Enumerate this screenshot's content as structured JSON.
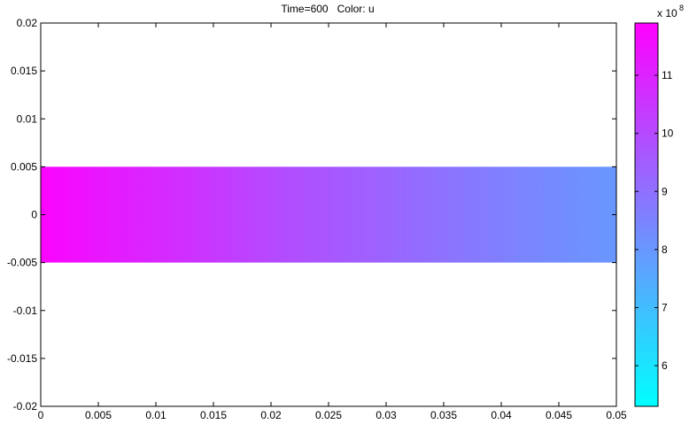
{
  "chart_data": {
    "type": "heatmap",
    "title": "Time=600   Color: u",
    "xlabel": "",
    "ylabel": "",
    "xlim": [
      0,
      0.05
    ],
    "ylim": [
      -0.02,
      0.02
    ],
    "x_ticks": [
      0,
      0.005,
      0.01,
      0.015,
      0.02,
      0.025,
      0.03,
      0.035,
      0.04,
      0.045,
      0.05
    ],
    "x_tick_labels": [
      "0",
      "0.005",
      "0.01",
      "0.015",
      "0.02",
      "0.025",
      "0.03",
      "0.035",
      "0.04",
      "0.045",
      "0.05"
    ],
    "y_ticks": [
      0.02,
      0.015,
      0.01,
      0.005,
      0,
      -0.005,
      -0.01,
      -0.015,
      -0.02
    ],
    "y_tick_labels": [
      "0.02",
      "0.015",
      "0.01",
      "0.005",
      "0",
      "-0.005",
      "-0.01",
      "-0.015",
      "-0.02"
    ],
    "domain": {
      "x": [
        0,
        0.05
      ],
      "y": [
        -0.005,
        0.005
      ]
    },
    "field": {
      "name": "u",
      "x": [
        0,
        0.01,
        0.02,
        0.03,
        0.04,
        0.05
      ],
      "values": [
        1180000000.0,
        1090000000.0,
        1000000000.0,
        930000000.0,
        860000000.0,
        800000000.0
      ]
    },
    "colorbar": {
      "colormap": "cool",
      "range": [
        530000000.0,
        1190000000.0
      ],
      "exponent_label": "x 10",
      "exponent": "8",
      "ticks": [
        6,
        7,
        8,
        9,
        10,
        11
      ],
      "tick_labels": [
        "6",
        "7",
        "8",
        "9",
        "10",
        "11"
      ],
      "scale": 100000000.0
    },
    "grid": false
  }
}
